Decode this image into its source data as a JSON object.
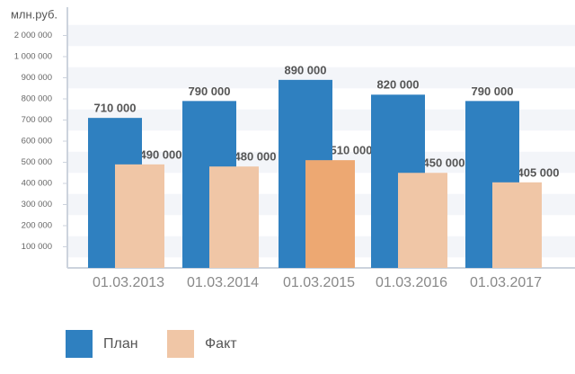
{
  "chart_data": {
    "type": "bar",
    "y_label": "млн.руб.",
    "categories": [
      "01.03.2013",
      "01.03.2014",
      "01.03.2015",
      "01.03.2016",
      "01.03.2017"
    ],
    "series": [
      {
        "name": "План",
        "color": "#2f80c0",
        "values": [
          710000,
          790000,
          890000,
          820000,
          790000
        ],
        "value_labels": [
          "710 000",
          "790 000",
          "890 000",
          "820 000",
          "790 000"
        ]
      },
      {
        "name": "Факт",
        "color": "#f0c6a6",
        "colors": [
          "#f0c6a6",
          "#f0c6a6",
          "#eda872",
          "#f0c6a6",
          "#f0c6a6"
        ],
        "values": [
          490000,
          480000,
          510000,
          450000,
          405000
        ],
        "value_labels": [
          "490 000",
          "480 000",
          "510 000",
          "450 000",
          "405 000"
        ]
      }
    ],
    "ylim": [
      0,
      2000000
    ],
    "yticks": [
      {
        "value": 100000,
        "label": "100 000"
      },
      {
        "value": 200000,
        "label": "200 000"
      },
      {
        "value": 300000,
        "label": "300 000"
      },
      {
        "value": 400000,
        "label": "400 000"
      },
      {
        "value": 500000,
        "label": "500 000"
      },
      {
        "value": 600000,
        "label": "600 000"
      },
      {
        "value": 700000,
        "label": "700 000"
      },
      {
        "value": 800000,
        "label": "800 000"
      },
      {
        "value": 900000,
        "label": "900 000"
      },
      {
        "value": 1000000,
        "label": "1 000 000"
      },
      {
        "value": 2000000,
        "label": "2 000 000"
      }
    ],
    "grid": true
  }
}
